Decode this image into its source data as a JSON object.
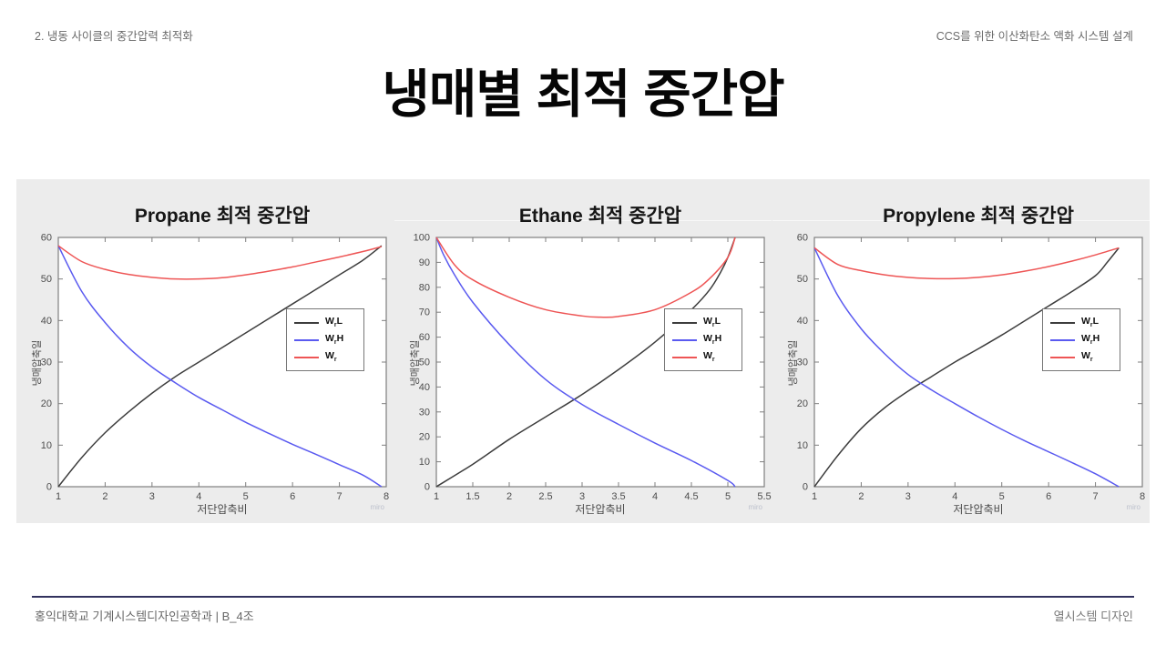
{
  "slide": {
    "header_left": "2. 냉동 사이클의 중간압력 최적화",
    "header_right": "CCS를 위한 이산화탄소 액화 시스템 설계",
    "title": "냉매별 최적 중간압",
    "footer_left": "홍익대학교 기계시스템디자인공학과 | B_4조",
    "footer_right": "열시스템 디자인",
    "accent_color": "#32325e",
    "band_color": "#ececec"
  },
  "chart_data": [
    {
      "type": "line",
      "title": "Propane 최적 중간압",
      "xlabel": "저단압축비",
      "ylabel": "냉매압축일",
      "watermark": "miro",
      "xlim": [
        1,
        8
      ],
      "ylim": [
        0,
        60
      ],
      "xticks": [
        1,
        2,
        3,
        4,
        5,
        6,
        7,
        8
      ],
      "yticks": [
        0,
        10,
        20,
        30,
        40,
        50,
        60
      ],
      "grid": false,
      "legend_position": "right-center",
      "axis_color": "#7f7f7f",
      "series": [
        {
          "name": "WrL",
          "label": {
            "pre": "W",
            "sub": "r",
            "post": "L"
          },
          "color": "#3d3d3d",
          "points": [
            [
              1,
              0
            ],
            [
              1.5,
              7
            ],
            [
              2,
              13
            ],
            [
              2.5,
              18
            ],
            [
              3,
              22.5
            ],
            [
              3.5,
              26.5
            ],
            [
              4,
              30
            ],
            [
              4.5,
              33.5
            ],
            [
              5,
              37
            ],
            [
              5.5,
              40.5
            ],
            [
              6,
              44
            ],
            [
              6.5,
              47.5
            ],
            [
              7,
              51
            ],
            [
              7.5,
              54.5
            ],
            [
              7.9,
              58
            ]
          ]
        },
        {
          "name": "WrH",
          "label": {
            "pre": "W",
            "sub": "r",
            "post": "H"
          },
          "color": "#5a5af0",
          "points": [
            [
              1,
              58
            ],
            [
              1.5,
              47
            ],
            [
              2,
              39.5
            ],
            [
              2.5,
              33.5
            ],
            [
              3,
              28.8
            ],
            [
              3.5,
              25
            ],
            [
              4,
              21.5
            ],
            [
              4.5,
              18.5
            ],
            [
              5,
              15.5
            ],
            [
              5.5,
              12.8
            ],
            [
              6,
              10.2
            ],
            [
              6.5,
              7.8
            ],
            [
              7,
              5.3
            ],
            [
              7.5,
              2.8
            ],
            [
              7.9,
              0
            ]
          ]
        },
        {
          "name": "Wr",
          "label": {
            "pre": "W",
            "sub": "r",
            "post": ""
          },
          "color": "#ee5555",
          "points": [
            [
              1,
              58
            ],
            [
              1.5,
              54.2
            ],
            [
              2,
              52.3
            ],
            [
              2.5,
              51.1
            ],
            [
              3,
              50.4
            ],
            [
              3.5,
              50
            ],
            [
              4,
              50
            ],
            [
              4.5,
              50.3
            ],
            [
              5,
              51
            ],
            [
              5.5,
              51.9
            ],
            [
              6,
              52.9
            ],
            [
              6.5,
              54.1
            ],
            [
              7,
              55.3
            ],
            [
              7.5,
              56.6
            ],
            [
              7.9,
              57.8
            ]
          ]
        }
      ]
    },
    {
      "type": "line",
      "title": "Ethane 최적 중간압",
      "xlabel": "저단압축비",
      "ylabel": "냉매압축일",
      "watermark": "miro",
      "xlim": [
        1,
        5.5
      ],
      "ylim": [
        0,
        100
      ],
      "xticks": [
        1,
        1.5,
        2,
        2.5,
        3,
        3.5,
        4,
        4.5,
        5,
        5.5
      ],
      "yticks": [
        0,
        10,
        20,
        30,
        40,
        50,
        60,
        70,
        80,
        90,
        100
      ],
      "grid": false,
      "legend_position": "right-center",
      "axis_color": "#7f7f7f",
      "series": [
        {
          "name": "WrL",
          "label": {
            "pre": "W",
            "sub": "r",
            "post": "L"
          },
          "color": "#3d3d3d",
          "points": [
            [
              1,
              0
            ],
            [
              1.5,
              9
            ],
            [
              2,
              19
            ],
            [
              2.5,
              28
            ],
            [
              3,
              37
            ],
            [
              3.5,
              47
            ],
            [
              4,
              58
            ],
            [
              4.5,
              71
            ],
            [
              4.75,
              79
            ],
            [
              4.9,
              86
            ],
            [
              5,
              92
            ],
            [
              5.1,
              100
            ]
          ]
        },
        {
          "name": "WrH",
          "label": {
            "pre": "W",
            "sub": "r",
            "post": "H"
          },
          "color": "#5a5af0",
          "points": [
            [
              1,
              100
            ],
            [
              1.1,
              93
            ],
            [
              1.25,
              85
            ],
            [
              1.5,
              74
            ],
            [
              2,
              57
            ],
            [
              2.5,
              43
            ],
            [
              3,
              33
            ],
            [
              3.5,
              25
            ],
            [
              4,
              17.5
            ],
            [
              4.5,
              10.5
            ],
            [
              5,
              2.5
            ],
            [
              5.1,
              0
            ]
          ]
        },
        {
          "name": "Wr",
          "label": {
            "pre": "W",
            "sub": "r",
            "post": ""
          },
          "color": "#ee5555",
          "points": [
            [
              1,
              100
            ],
            [
              1.25,
              89
            ],
            [
              1.5,
              83
            ],
            [
              2,
              76
            ],
            [
              2.5,
              71
            ],
            [
              3,
              68.5
            ],
            [
              3.25,
              68
            ],
            [
              3.5,
              68.3
            ],
            [
              4,
              71
            ],
            [
              4.5,
              78
            ],
            [
              4.75,
              83.5
            ],
            [
              5,
              92
            ],
            [
              5.1,
              100
            ]
          ]
        }
      ]
    },
    {
      "type": "line",
      "title": "Propylene 최적 중간압",
      "xlabel": "저단압축비",
      "ylabel": "냉매압축일",
      "watermark": "miro",
      "xlim": [
        1,
        8
      ],
      "ylim": [
        0,
        60
      ],
      "xticks": [
        1,
        2,
        3,
        4,
        5,
        6,
        7,
        8
      ],
      "yticks": [
        0,
        10,
        20,
        30,
        40,
        50,
        60
      ],
      "grid": false,
      "legend_position": "right-center",
      "axis_color": "#7f7f7f",
      "series": [
        {
          "name": "WrL",
          "label": {
            "pre": "W",
            "sub": "r",
            "post": "L"
          },
          "color": "#3d3d3d",
          "points": [
            [
              1,
              0
            ],
            [
              1.5,
              7.5
            ],
            [
              2,
              14
            ],
            [
              2.5,
              19
            ],
            [
              3,
              23
            ],
            [
              3.5,
              26.5
            ],
            [
              4,
              30
            ],
            [
              4.5,
              33.2
            ],
            [
              5,
              36.5
            ],
            [
              5.5,
              40
            ],
            [
              6,
              43.5
            ],
            [
              6.5,
              47
            ],
            [
              7,
              50.8
            ],
            [
              7.25,
              54
            ],
            [
              7.5,
              57.5
            ]
          ]
        },
        {
          "name": "WrH",
          "label": {
            "pre": "W",
            "sub": "r",
            "post": "H"
          },
          "color": "#5a5af0",
          "points": [
            [
              1,
              57.5
            ],
            [
              1.5,
              46
            ],
            [
              2,
              38
            ],
            [
              2.5,
              32
            ],
            [
              3,
              27
            ],
            [
              3.5,
              23.3
            ],
            [
              4,
              20
            ],
            [
              4.5,
              16.8
            ],
            [
              5,
              13.8
            ],
            [
              5.5,
              11
            ],
            [
              6,
              8.4
            ],
            [
              6.5,
              5.8
            ],
            [
              7,
              3.1
            ],
            [
              7.5,
              0
            ]
          ]
        },
        {
          "name": "Wr",
          "label": {
            "pre": "W",
            "sub": "r",
            "post": ""
          },
          "color": "#ee5555",
          "points": [
            [
              1,
              57.5
            ],
            [
              1.5,
              53.5
            ],
            [
              2,
              52
            ],
            [
              2.5,
              51
            ],
            [
              3,
              50.4
            ],
            [
              3.5,
              50.1
            ],
            [
              4,
              50.1
            ],
            [
              4.5,
              50.4
            ],
            [
              5,
              51
            ],
            [
              5.5,
              51.9
            ],
            [
              6,
              53
            ],
            [
              6.5,
              54.3
            ],
            [
              7,
              55.8
            ],
            [
              7.5,
              57.5
            ]
          ]
        }
      ]
    }
  ]
}
